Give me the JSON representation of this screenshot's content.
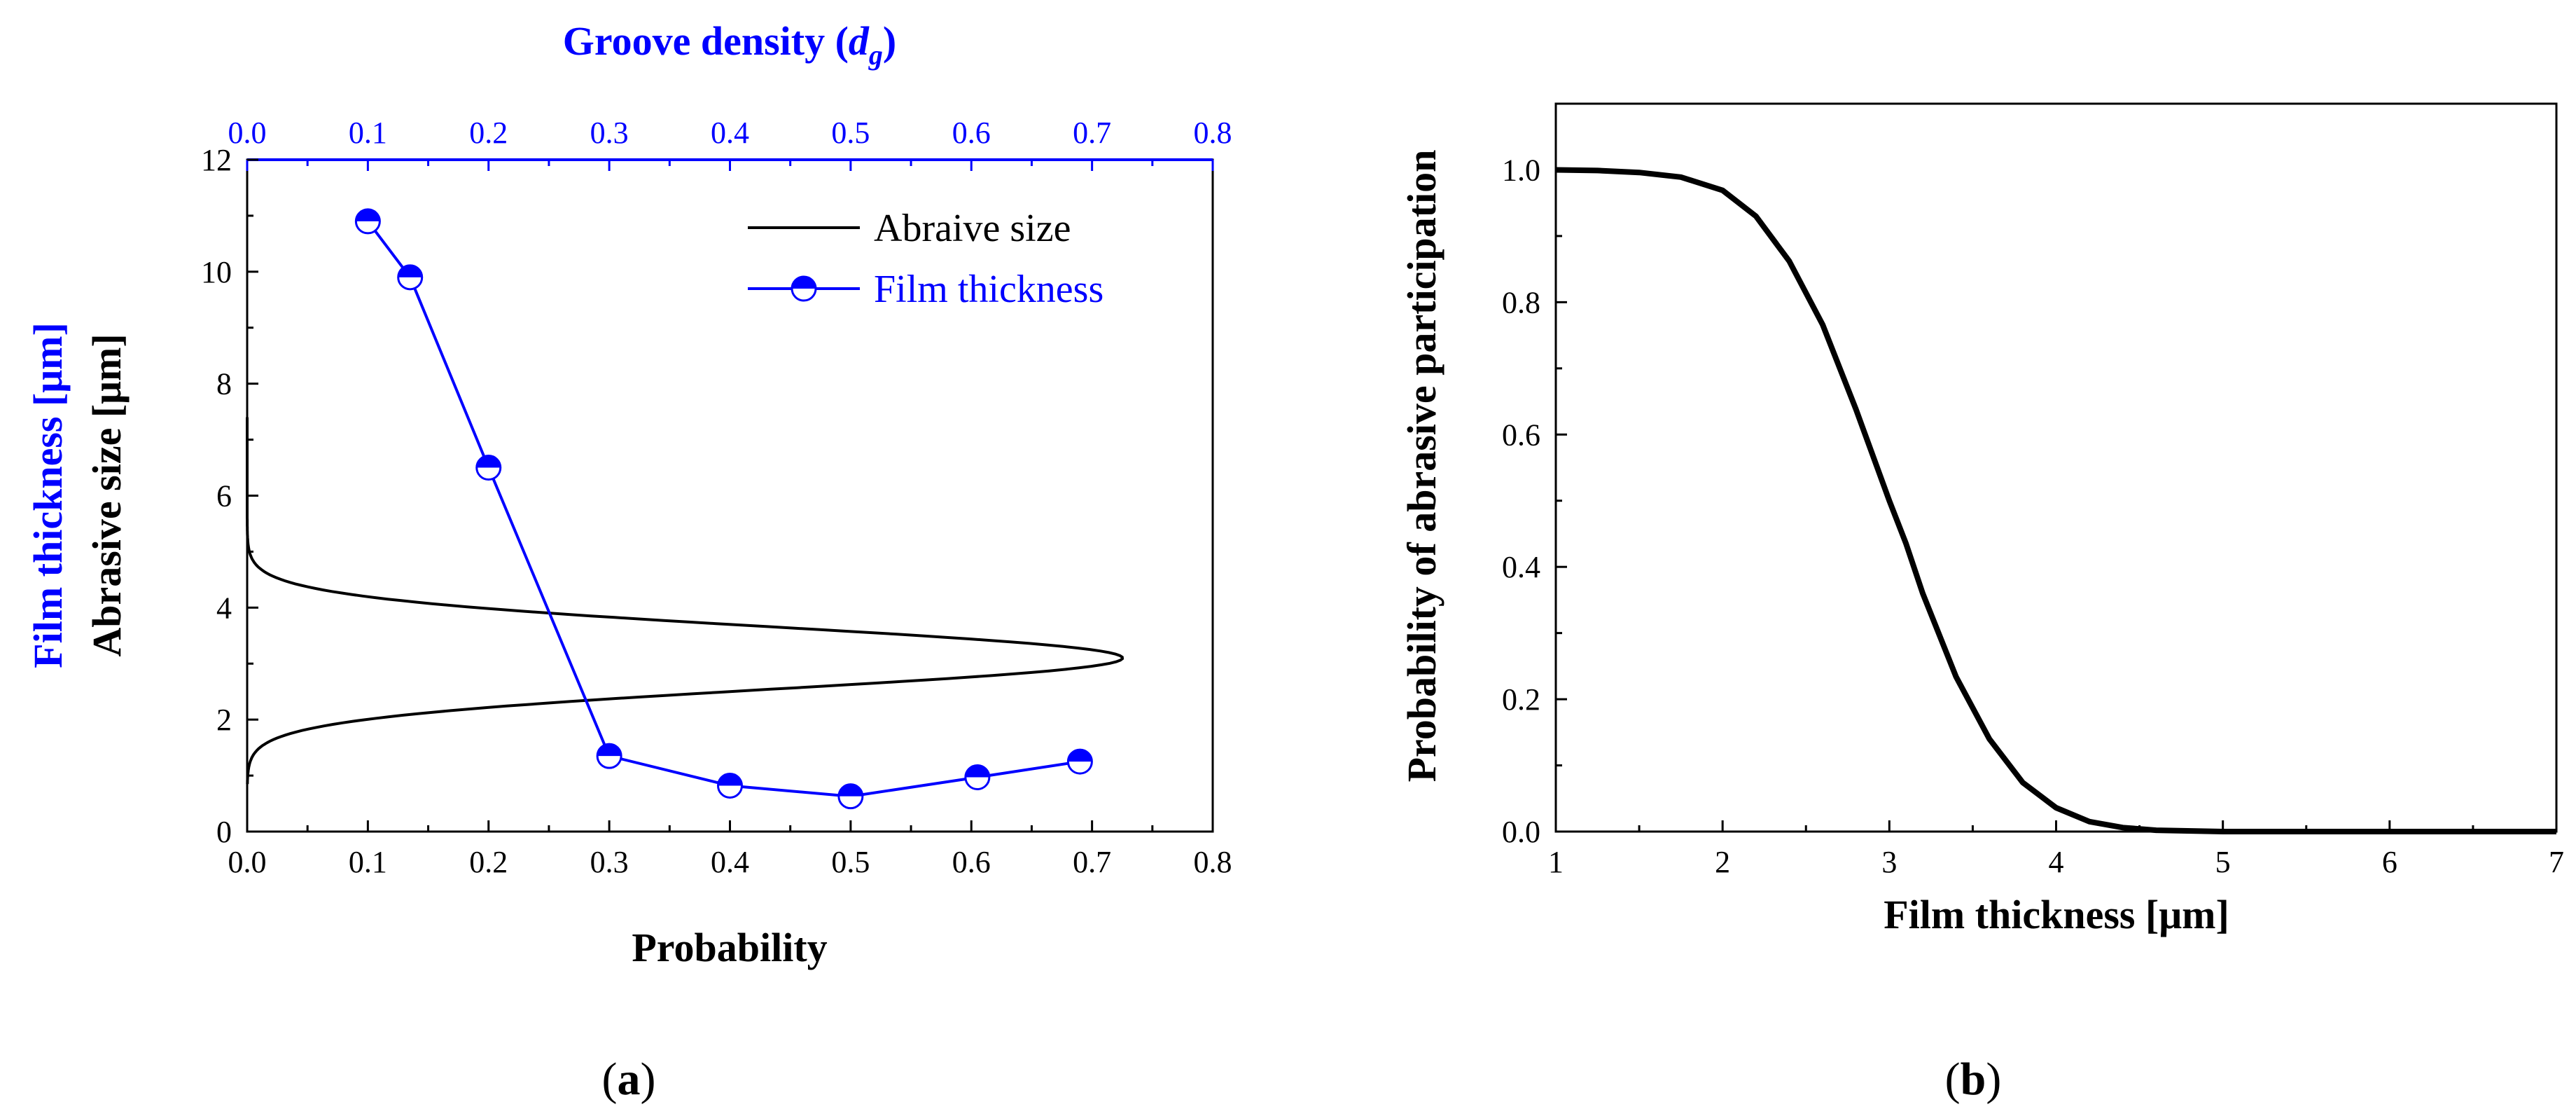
{
  "colors": {
    "black": "#000000",
    "blue": "#0000ff"
  },
  "panels": {
    "a": {
      "label_prefix": "(",
      "label_letter": "a",
      "label_suffix": ")"
    },
    "b": {
      "label_prefix": "(",
      "label_letter": "b",
      "label_suffix": ")"
    }
  },
  "chart_data": [
    {
      "type": "line",
      "panel": "a",
      "xlabel": "Probability",
      "x2label_main": "Groove density (",
      "x2label_var": "d",
      "x2label_sub": "g",
      "x2label_close": ")",
      "ylabel": "Abrasive size [μm]",
      "ylabel2": "Film thickness [μm]",
      "xlim": [
        0,
        0.8
      ],
      "x2lim": [
        0,
        0.8
      ],
      "ylim": [
        0,
        12
      ],
      "xticks": [
        "0.0",
        "0.1",
        "0.2",
        "0.3",
        "0.4",
        "0.5",
        "0.6",
        "0.7",
        "0.8"
      ],
      "x2ticks": [
        "0.0",
        "0.1",
        "0.2",
        "0.3",
        "0.4",
        "0.5",
        "0.6",
        "0.7",
        "0.8"
      ],
      "yticks": [
        "0",
        "2",
        "4",
        "6",
        "8",
        "10",
        "12"
      ],
      "legend_position": "top-right",
      "series": [
        {
          "name": "Abraive size",
          "color": "#000000",
          "marker": "none",
          "distribution": {
            "kind": "normal_pdf_vs_size",
            "mean": 3.1,
            "sd": 0.55,
            "size_range": [
              0.85,
              7.4
            ]
          }
        },
        {
          "name": "Film thickness",
          "color": "#0000ff",
          "marker": "half-filled-circle",
          "x": [
            0.1,
            0.135,
            0.2,
            0.3,
            0.4,
            0.5,
            0.605,
            0.69
          ],
          "y": [
            10.9,
            9.9,
            6.5,
            1.35,
            0.82,
            0.63,
            0.97,
            1.25
          ]
        }
      ]
    },
    {
      "type": "line",
      "panel": "b",
      "xlabel": "Film thickness [μm]",
      "ylabel": "Probability of abrasive participation",
      "xlim": [
        1,
        7
      ],
      "ylim": [
        0,
        1.1
      ],
      "xticks": [
        "1",
        "2",
        "3",
        "4",
        "5",
        "6",
        "7"
      ],
      "yticks": [
        "0.0",
        "0.2",
        "0.4",
        "0.6",
        "0.8",
        "1.0"
      ],
      "series": [
        {
          "color": "#000000",
          "x": [
            1.0,
            1.25,
            1.5,
            1.75,
            2.0,
            2.2,
            2.4,
            2.6,
            2.8,
            3.0,
            3.1,
            3.2,
            3.4,
            3.6,
            3.8,
            4.0,
            4.2,
            4.4,
            4.6,
            5.0,
            6.0,
            7.0
          ],
          "y": [
            1.0,
            0.999,
            0.996,
            0.989,
            0.969,
            0.93,
            0.862,
            0.766,
            0.638,
            0.5,
            0.435,
            0.36,
            0.234,
            0.14,
            0.074,
            0.036,
            0.015,
            0.006,
            0.002,
            0.0,
            0.0,
            0.0
          ]
        }
      ]
    }
  ]
}
